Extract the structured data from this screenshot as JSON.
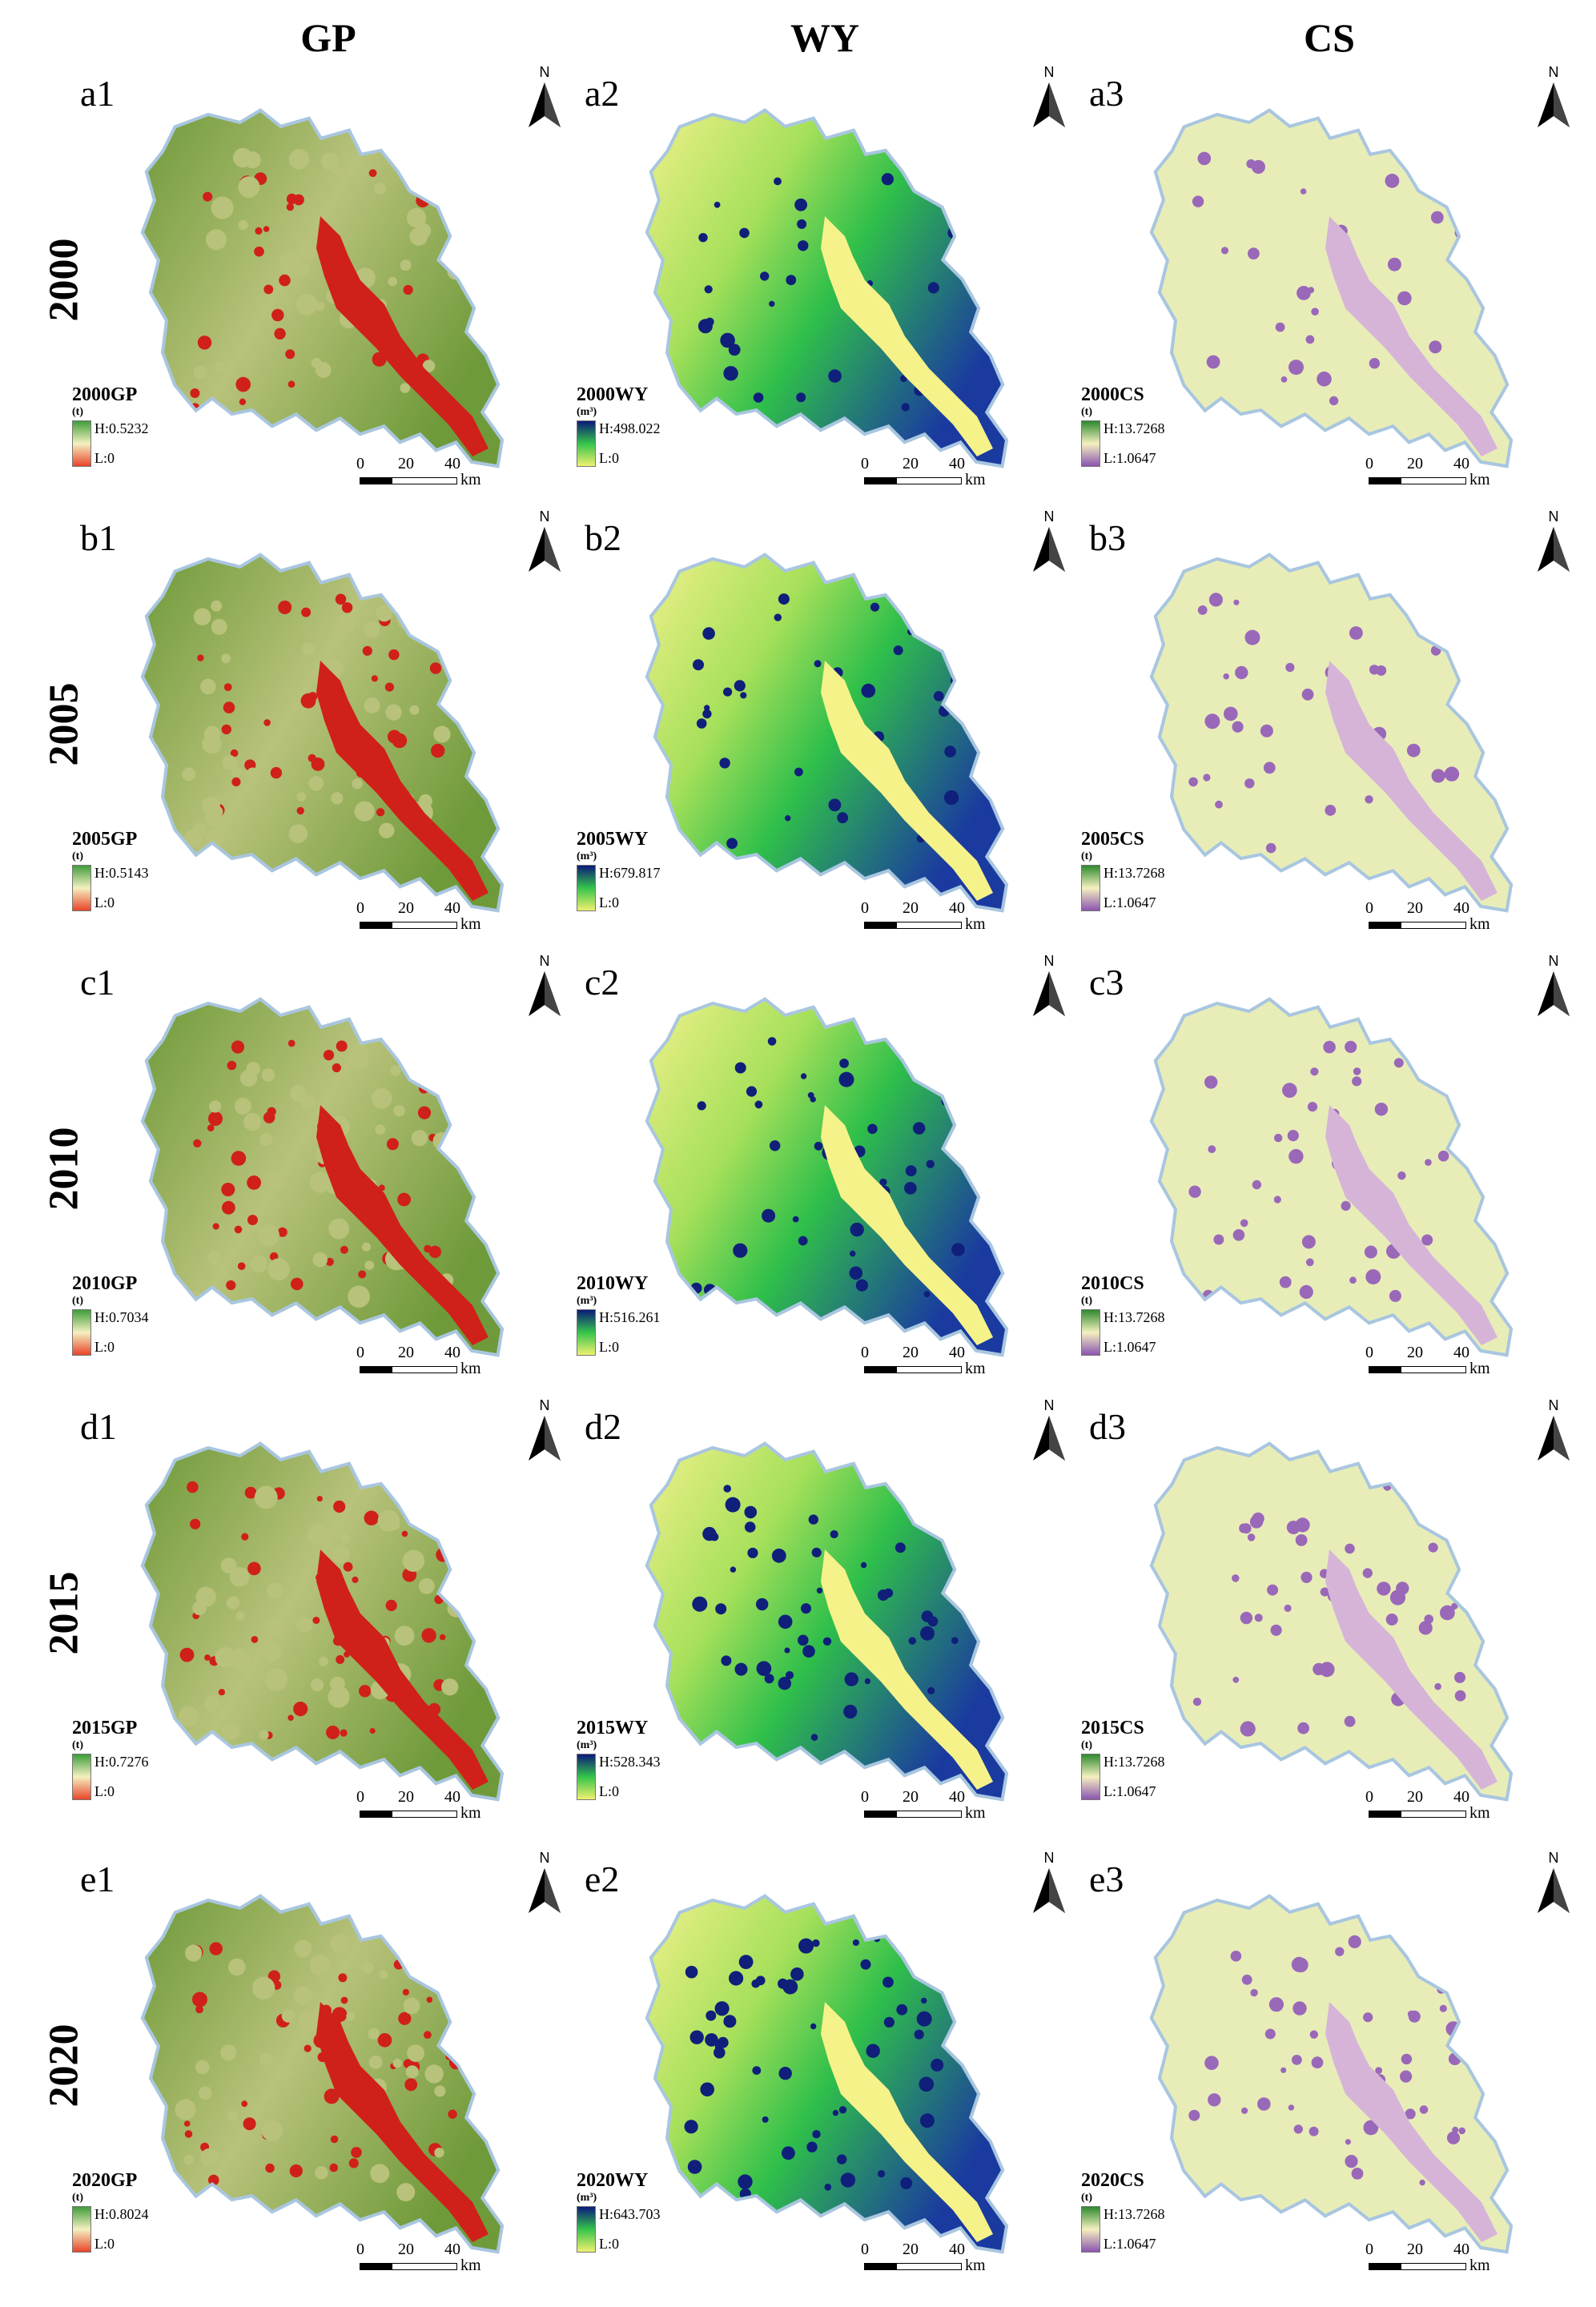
{
  "columns": [
    {
      "key": "gp",
      "title": "GP"
    },
    {
      "key": "wy",
      "title": "WY"
    },
    {
      "key": "cs",
      "title": "CS"
    }
  ],
  "rows": [
    {
      "year": "2000",
      "panels": [
        {
          "label": "a1",
          "legend_title": "2000GP",
          "unit": "(t)",
          "high": "H:0.5232",
          "low": "L:0"
        },
        {
          "label": "a2",
          "legend_title": "2000WY",
          "unit": "(m³)",
          "high": "H:498.022",
          "low": "L:0"
        },
        {
          "label": "a3",
          "legend_title": "2000CS",
          "unit": "(t)",
          "high": "H:13.7268",
          "low": "L:1.0647"
        }
      ]
    },
    {
      "year": "2005",
      "panels": [
        {
          "label": "b1",
          "legend_title": "2005GP",
          "unit": "(t)",
          "high": "H:0.5143",
          "low": "L:0"
        },
        {
          "label": "b2",
          "legend_title": "2005WY",
          "unit": "(m³)",
          "high": "H:679.817",
          "low": "L:0"
        },
        {
          "label": "b3",
          "legend_title": "2005CS",
          "unit": "(t)",
          "high": "H:13.7268",
          "low": "L:1.0647"
        }
      ]
    },
    {
      "year": "2010",
      "panels": [
        {
          "label": "c1",
          "legend_title": "2010GP",
          "unit": "(t)",
          "high": "H:0.7034",
          "low": "L:0"
        },
        {
          "label": "c2",
          "legend_title": "2010WY",
          "unit": "(m³)",
          "high": "H:516.261",
          "low": "L:0"
        },
        {
          "label": "c3",
          "legend_title": "2010CS",
          "unit": "(t)",
          "high": "H:13.7268",
          "low": "L:1.0647"
        }
      ]
    },
    {
      "year": "2015",
      "panels": [
        {
          "label": "d1",
          "legend_title": "2015GP",
          "unit": "(t)",
          "high": "H:0.7276",
          "low": "L:0"
        },
        {
          "label": "d2",
          "legend_title": "2015WY",
          "unit": "(m³)",
          "high": "H:528.343",
          "low": "L:0"
        },
        {
          "label": "d3",
          "legend_title": "2015CS",
          "unit": "(t)",
          "high": "H:13.7268",
          "low": "L:1.0647"
        }
      ]
    },
    {
      "year": "2020",
      "panels": [
        {
          "label": "e1",
          "legend_title": "2020GP",
          "unit": "(t)",
          "high": "H:0.8024",
          "low": "L:0"
        },
        {
          "label": "e2",
          "legend_title": "2020WY",
          "unit": "(m³)",
          "high": "H:643.703",
          "low": "L:0"
        },
        {
          "label": "e3",
          "legend_title": "2020CS",
          "unit": "(t)",
          "high": "H:13.7268",
          "low": "L:1.0647"
        }
      ]
    }
  ],
  "north_label": "N",
  "scale": {
    "ticks": [
      "0",
      "20",
      "40"
    ],
    "unit": "km"
  },
  "colors": {
    "gp": {
      "base": "#6f9a3a",
      "mid": "#b8c27a",
      "feature": "#d0201a",
      "ramp_high": "#3f9e3a",
      "ramp_low": "#e8452a"
    },
    "wy": {
      "base": "#2fbf4a",
      "mid": "#a6e05a",
      "north_west": "#eef08a",
      "feature": "#f6f28a",
      "urban": "#0f1f7a",
      "east": "#1a3aa0",
      "ramp_high": "#0a1a7a",
      "ramp_mid": "#35c44a",
      "ramp_low": "#f0f070"
    },
    "cs": {
      "base": "#e8edb8",
      "feature": "#d6b4d8",
      "urban": "#9a68b8",
      "ramp_high": "#2e8a2e",
      "ramp_low": "#8a55b0"
    },
    "outline": "#a9c6df"
  }
}
